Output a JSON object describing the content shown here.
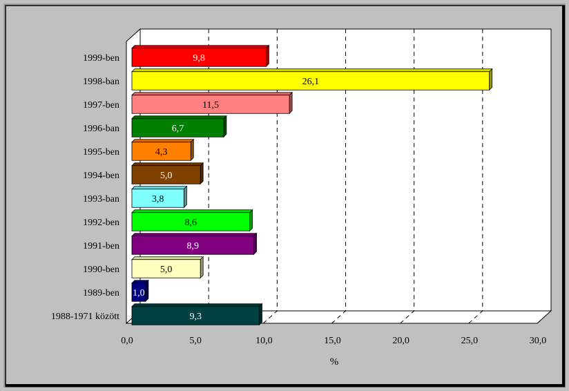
{
  "chart_data": {
    "type": "bar",
    "orientation": "horizontal",
    "categories": [
      "1999-ben",
      "1998-ban",
      "1997-ben",
      "1996-ban",
      "1995-ben",
      "1994-ben",
      "1993-ban",
      "1992-ben",
      "1991-ben",
      "1990-ben",
      "1989-ben",
      "1988-1971 között"
    ],
    "values": [
      9.8,
      26.1,
      11.5,
      6.7,
      4.3,
      5.0,
      3.8,
      8.6,
      8.9,
      5.0,
      1.0,
      9.3
    ],
    "value_labels": [
      "9,8",
      "26,1",
      "11,5",
      "6,7",
      "4,3",
      "5,0",
      "3,8",
      "8,6",
      "8,9",
      "5,0",
      "1,0",
      "9,3"
    ],
    "colors": [
      "#ff0000",
      "#ffff00",
      "#ff8080",
      "#008000",
      "#ff8000",
      "#804000",
      "#80ffff",
      "#00ff00",
      "#800080",
      "#ffffc0",
      "#000080",
      "#004040"
    ],
    "xlabel": "%",
    "xlim": [
      0,
      30
    ],
    "xticks": [
      0,
      5,
      10,
      15,
      20,
      25,
      30
    ],
    "xtick_labels": [
      "0,0",
      "5,0",
      "10,0",
      "15,0",
      "20,0",
      "25,0",
      "30,0"
    ],
    "grid": "vertical dashed",
    "legend": "none",
    "background": "#c0c0c0"
  }
}
